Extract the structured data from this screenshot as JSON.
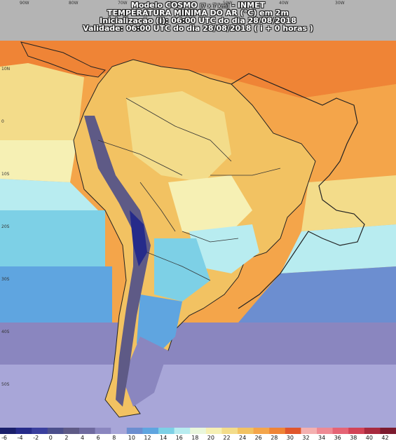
{
  "header": {
    "line1_model": "Modelo COSMO",
    "line1_res": "[7 x 7 km]",
    "line1_org": "- INMET",
    "line2": "TEMPERATURA MÍNIMA DO AR (°C) em 2m",
    "line3": "Inicialização (i): 06:00 UTC do dia 28/08/2018",
    "line4": "Validade: 06:00 UTC do dia 28/08/2018 ( i + 0 horas )"
  },
  "grid_labels": {
    "lon": [
      "90W",
      "80W",
      "70W",
      "60W",
      "50W",
      "40W",
      "30W"
    ],
    "lat": [
      "10N",
      "0",
      "10S",
      "20S",
      "30S",
      "40S",
      "50S"
    ]
  },
  "legend": {
    "ticks": [
      "-6",
      "-4",
      "-2",
      "0",
      "2",
      "4",
      "6",
      "8",
      "10",
      "12",
      "14",
      "16",
      "18",
      "20",
      "22",
      "24",
      "26",
      "28",
      "30",
      "32",
      "34",
      "36",
      "38",
      "40",
      "42"
    ],
    "colors": [
      "#1a1f6b",
      "#262b8a",
      "#3a3f9e",
      "#4b4f8c",
      "#5e5a86",
      "#6f6aa0",
      "#8a86bf",
      "#a8a6d8",
      "#6c8ed0",
      "#5fa5e0",
      "#7dd0e6",
      "#b8ecf0",
      "#eaf7dc",
      "#f6f0b4",
      "#f3dc8a",
      "#f2c262",
      "#f4a54a",
      "#ef8436",
      "#e0562c",
      "#f4b0b0",
      "#ee8a94",
      "#e56475",
      "#d24356",
      "#a82a3e",
      "#7c1a2e"
    ]
  }
}
